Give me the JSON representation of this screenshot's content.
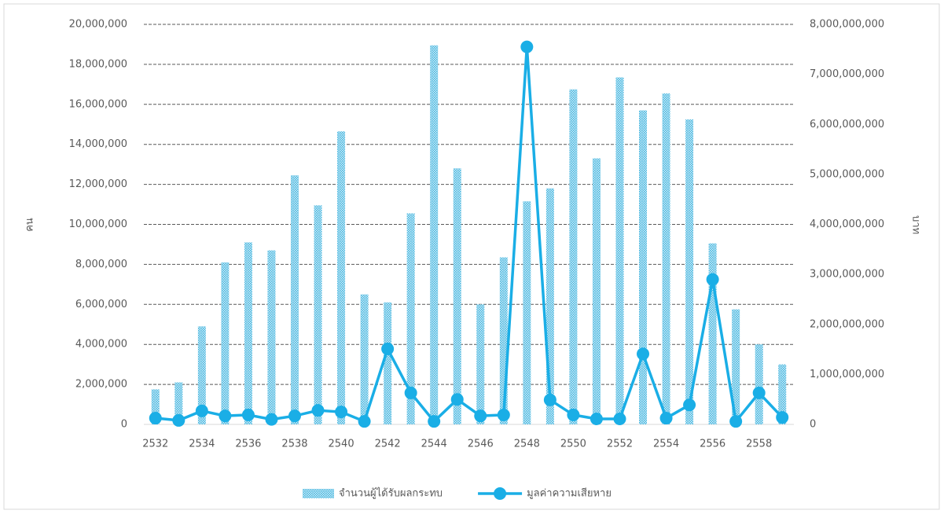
{
  "chart_data": {
    "type": "bar_line",
    "categories": [
      "2532",
      null,
      "2534",
      null,
      "2536",
      null,
      "2538",
      null,
      "2540",
      null,
      "2542",
      null,
      "2544",
      null,
      "2546",
      null,
      "2548",
      null,
      "2550",
      null,
      "2552",
      null,
      "2554",
      null,
      "2556",
      null,
      "2558",
      null
    ],
    "series": [
      {
        "name": "จำนวนผู้ได้รับผลกระทบ",
        "color": "#4bb8e0",
        "type": "bar",
        "values": [
          1750000,
          2100000,
          4900000,
          8100000,
          9100000,
          8700000,
          12450000,
          10950000,
          14650000,
          6500000,
          6100000,
          10550000,
          18950000,
          12800000,
          6000000,
          8350000,
          11150000,
          11800000,
          16750000,
          13300000,
          17350000,
          15700000,
          16550000,
          15250000,
          9050000,
          5750000,
          4000000,
          3000000
        ]
      },
      {
        "name": "มูลค่าความเสียหาย",
        "color": "#1aaee6",
        "type": "line",
        "axis": "y2",
        "values": [
          125000000,
          80000000,
          270000000,
          170000000,
          190000000,
          100000000,
          170000000,
          280000000,
          250000000,
          60000000,
          1510000000,
          630000000,
          60000000,
          500000000,
          170000000,
          190000000,
          7550000000,
          490000000,
          190000000,
          110000000,
          110000000,
          1410000000,
          125000000,
          390000000,
          2900000000,
          60000000,
          630000000,
          140000000
        ]
      }
    ],
    "y_label": "คน",
    "y2_label": "บาท",
    "ylim": [
      0,
      20000000
    ],
    "yticks": [
      0,
      {
        "value": 2000000,
        "label": "2,000,000"
      },
      {
        "value": 4000000,
        "label": "4,000,000"
      },
      {
        "value": 6000000,
        "label": "6,000,000"
      },
      {
        "value": 8000000,
        "label": "8,000,000"
      },
      {
        "value": 10000000,
        "label": "10,000,000"
      },
      {
        "value": 12000000,
        "label": "12,000,000"
      },
      {
        "value": 14000000,
        "label": "14,000,000"
      },
      {
        "value": 16000000,
        "label": "16,000,000"
      },
      {
        "value": 18000000,
        "label": "18,000,000"
      },
      {
        "value": 20000000,
        "label": "20,000,000"
      }
    ],
    "y2lim": [
      0,
      8000000000
    ],
    "y2ticks": [
      0,
      {
        "value": 1000000000,
        "label": "1,000,000,000"
      },
      {
        "value": 2000000000,
        "label": "2,000,000,000"
      },
      {
        "value": 3000000000,
        "label": "3,000,000,000"
      },
      {
        "value": 4000000000,
        "label": "4,000,000,000"
      },
      {
        "value": 5000000000,
        "label": "5,000,000,000"
      },
      {
        "value": 6000000000,
        "label": "6,000,000,000"
      },
      {
        "value": 7000000000,
        "label": "7,000,000,000"
      },
      {
        "value": 8000000000,
        "label": "8,000,000,000"
      }
    ],
    "grid": true,
    "legend": "bottom"
  }
}
